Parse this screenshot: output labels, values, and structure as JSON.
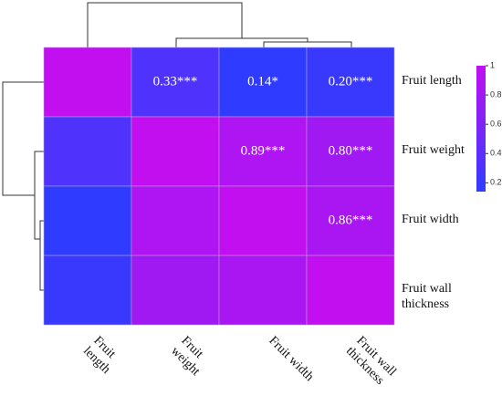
{
  "chart_data": {
    "type": "heatmap",
    "rows": [
      "Fruit length",
      "Fruit weight",
      "Fruit width",
      "Fruit wall thickness"
    ],
    "columns": [
      "Fruit length",
      "Fruit weight",
      "Fruit width",
      "Fruit wall thickness"
    ],
    "values": [
      [
        1,
        0.33,
        0.14,
        0.2
      ],
      [
        0.33,
        1,
        0.89,
        0.8
      ],
      [
        0.14,
        0.89,
        1,
        0.86
      ],
      [
        0.2,
        0.8,
        0.86,
        1
      ]
    ],
    "value_labels": [
      [
        null,
        "0.33***",
        "0.14*",
        "0.20***"
      ],
      [
        null,
        null,
        "0.89***",
        "0.80***"
      ],
      [
        null,
        null,
        null,
        "0.86***"
      ],
      [
        null,
        null,
        null,
        null
      ]
    ],
    "colors": [
      "#2f3cff",
      "#c20ff0"
    ],
    "clim": [
      0.14,
      1
    ],
    "cticks": [
      0.2,
      0.4,
      0.6,
      0.8,
      1
    ]
  }
}
